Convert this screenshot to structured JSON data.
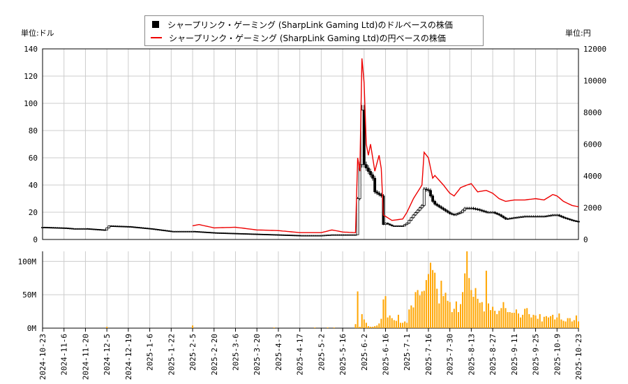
{
  "unit_left": "単位:ドル",
  "unit_right": "単位:円",
  "legend": [
    {
      "label": "シャープリンク・ゲーミング (SharpLink Gaming Ltd)のドルベースの株価",
      "color": "#000000",
      "marker": "square"
    },
    {
      "label": "シャープリンク・ゲーミング (SharpLink Gaming Ltd)の円ベースの株価",
      "color": "#e00000",
      "marker": "line"
    }
  ],
  "chart_data": [
    {
      "type": "candlestick+line",
      "x_ticks": [
        "2024-10-23",
        "2024-11-6",
        "2024-11-20",
        "2024-12-5",
        "2024-12-19",
        "2025-1-6",
        "2025-1-22",
        "2025-2-5",
        "2025-2-20",
        "2025-3-6",
        "2025-3-20",
        "2025-4-3",
        "2025-4-17",
        "2025-5-2",
        "2025-5-16",
        "2025-6-2",
        "2025-6-16",
        "2025-7-1",
        "2025-7-16",
        "2025-7-30",
        "2025-8-13",
        "2025-8-27",
        "2025-9-11",
        "2025-9-25",
        "2025-10-9",
        "2025-10-23"
      ],
      "y_left": {
        "ticks": [
          0,
          20,
          40,
          60,
          80,
          100,
          120,
          140
        ],
        "range": [
          0,
          140
        ]
      },
      "y_right": {
        "ticks": [
          0,
          2000,
          4000,
          6000,
          8000,
          10000,
          12000
        ],
        "range": [
          0,
          12000
        ]
      },
      "grid": true,
      "legend_position": "top-center",
      "series_usd": [
        [
          "2024-10-23",
          9
        ],
        [
          "2024-11-6",
          8.5
        ],
        [
          "2024-11-12",
          8
        ],
        [
          "2024-11-20",
          8
        ],
        [
          "2024-12-4",
          7
        ],
        [
          "2024-12-6",
          10
        ],
        [
          "2024-12-19",
          9.5
        ],
        [
          "2025-1-6",
          8
        ],
        [
          "2025-1-22",
          6
        ],
        [
          "2025-2-5",
          6
        ],
        [
          "2025-2-20",
          5
        ],
        [
          "2025-3-6",
          4.5
        ],
        [
          "2025-3-20",
          4
        ],
        [
          "2025-4-3",
          3.5
        ],
        [
          "2025-4-17",
          3
        ],
        [
          "2025-5-2",
          3
        ],
        [
          "2025-5-9",
          3.5
        ],
        [
          "2025-5-16",
          3.5
        ],
        [
          "2025-5-27",
          3.5
        ],
        [
          "2025-5-28",
          30
        ],
        [
          "2025-5-29",
          55
        ],
        [
          "2025-5-30",
          95
        ],
        [
          "2025-6-2",
          55
        ],
        [
          "2025-6-4",
          50
        ],
        [
          "2025-6-6",
          45
        ],
        [
          "2025-6-9",
          35
        ],
        [
          "2025-6-11",
          33
        ],
        [
          "2025-6-12",
          32
        ],
        [
          "2025-6-13",
          11
        ],
        [
          "2025-6-16",
          12
        ],
        [
          "2025-6-20",
          10
        ],
        [
          "2025-6-27",
          10
        ],
        [
          "2025-7-1",
          12
        ],
        [
          "2025-7-7",
          18
        ],
        [
          "2025-7-11",
          25
        ],
        [
          "2025-7-14",
          37
        ],
        [
          "2025-7-16",
          36
        ],
        [
          "2025-7-18",
          28
        ],
        [
          "2025-7-21",
          26
        ],
        [
          "2025-7-25",
          22
        ],
        [
          "2025-7-30",
          19
        ],
        [
          "2025-8-1",
          18
        ],
        [
          "2025-8-6",
          20
        ],
        [
          "2025-8-8",
          23
        ],
        [
          "2025-8-13",
          23
        ],
        [
          "2025-8-18",
          22
        ],
        [
          "2025-8-22",
          20
        ],
        [
          "2025-8-27",
          20
        ],
        [
          "2025-9-2",
          18
        ],
        [
          "2025-9-5",
          15
        ],
        [
          "2025-9-11",
          16
        ],
        [
          "2025-9-18",
          17
        ],
        [
          "2025-9-25",
          17
        ],
        [
          "2025-10-1",
          17
        ],
        [
          "2025-10-7",
          18
        ],
        [
          "2025-10-9",
          18
        ],
        [
          "2025-10-14",
          16
        ],
        [
          "2025-10-20",
          14
        ],
        [
          "2025-10-23",
          13
        ]
      ],
      "series_jpy": [
        [
          "2025-2-5",
          860
        ],
        [
          "2025-2-10",
          940
        ],
        [
          "2025-2-20",
          730
        ],
        [
          "2025-3-6",
          770
        ],
        [
          "2025-3-20",
          600
        ],
        [
          "2025-4-3",
          560
        ],
        [
          "2025-4-17",
          430
        ],
        [
          "2025-5-2",
          430
        ],
        [
          "2025-5-9",
          600
        ],
        [
          "2025-5-16",
          470
        ],
        [
          "2025-5-27",
          430
        ],
        [
          "2025-5-28",
          5140
        ],
        [
          "2025-5-29",
          4300
        ],
        [
          "2025-5-30",
          11400
        ],
        [
          "2025-6-2",
          9860
        ],
        [
          "2025-6-3",
          6000
        ],
        [
          "2025-6-4",
          5300
        ],
        [
          "2025-6-5",
          6000
        ],
        [
          "2025-6-9",
          4300
        ],
        [
          "2025-6-11",
          5300
        ],
        [
          "2025-6-12",
          4460
        ],
        [
          "2025-6-13",
          1540
        ],
        [
          "2025-6-20",
          1200
        ],
        [
          "2025-6-27",
          1290
        ],
        [
          "2025-7-1",
          1710
        ],
        [
          "2025-7-7",
          2570
        ],
        [
          "2025-7-11",
          3430
        ],
        [
          "2025-7-14",
          5490
        ],
        [
          "2025-7-16",
          5140
        ],
        [
          "2025-7-18",
          3860
        ],
        [
          "2025-7-21",
          4030
        ],
        [
          "2025-7-25",
          3430
        ],
        [
          "2025-7-30",
          2910
        ],
        [
          "2025-8-1",
          2740
        ],
        [
          "2025-8-6",
          3260
        ],
        [
          "2025-8-11",
          3430
        ],
        [
          "2025-8-13",
          3510
        ],
        [
          "2025-8-18",
          3000
        ],
        [
          "2025-8-22",
          3090
        ],
        [
          "2025-8-27",
          2910
        ],
        [
          "2025-9-2",
          2570
        ],
        [
          "2025-9-5",
          2400
        ],
        [
          "2025-9-11",
          2490
        ],
        [
          "2025-9-18",
          2490
        ],
        [
          "2025-9-25",
          2570
        ],
        [
          "2025-10-1",
          2490
        ],
        [
          "2025-10-7",
          2830
        ],
        [
          "2025-10-9",
          2740
        ],
        [
          "2025-10-14",
          2400
        ],
        [
          "2025-10-20",
          2140
        ],
        [
          "2025-10-23",
          2060
        ]
      ]
    },
    {
      "type": "bar",
      "y_ticks": [
        "0M",
        "50M",
        "100M"
      ],
      "y_range_millions": [
        0,
        115
      ],
      "color": "#ffa500",
      "sparse_volumes_millions": [
        [
          "2024-12-5",
          2
        ],
        [
          "2025-2-5",
          4
        ],
        [
          "2025-4-1",
          1
        ],
        [
          "2025-4-29",
          1
        ],
        [
          "2025-5-7",
          1
        ],
        [
          "2025-5-12",
          1
        ]
      ],
      "volumes_from_2025_5_27_millions": [
        6,
        55,
        2,
        21,
        13,
        8,
        3,
        2,
        2,
        3,
        4,
        7,
        14,
        43,
        48,
        16,
        19,
        15,
        12,
        11,
        20,
        8,
        8,
        10,
        8,
        28,
        34,
        31,
        54,
        57,
        49,
        55,
        56,
        72,
        81,
        98,
        87,
        83,
        59,
        37,
        71,
        48,
        53,
        41,
        39,
        24,
        29,
        40,
        24,
        36,
        54,
        82,
        115,
        75,
        57,
        47,
        60,
        44,
        38,
        39,
        25,
        86,
        37,
        27,
        32,
        26,
        21,
        26,
        30,
        39,
        30,
        24,
        24,
        23,
        23,
        28,
        22,
        16,
        20,
        29,
        30,
        21,
        16,
        20,
        19,
        14,
        21,
        10,
        17,
        18,
        16,
        18,
        20,
        13,
        16,
        22,
        13,
        11,
        10,
        15,
        15,
        10,
        12,
        19,
        10
      ]
    }
  ]
}
